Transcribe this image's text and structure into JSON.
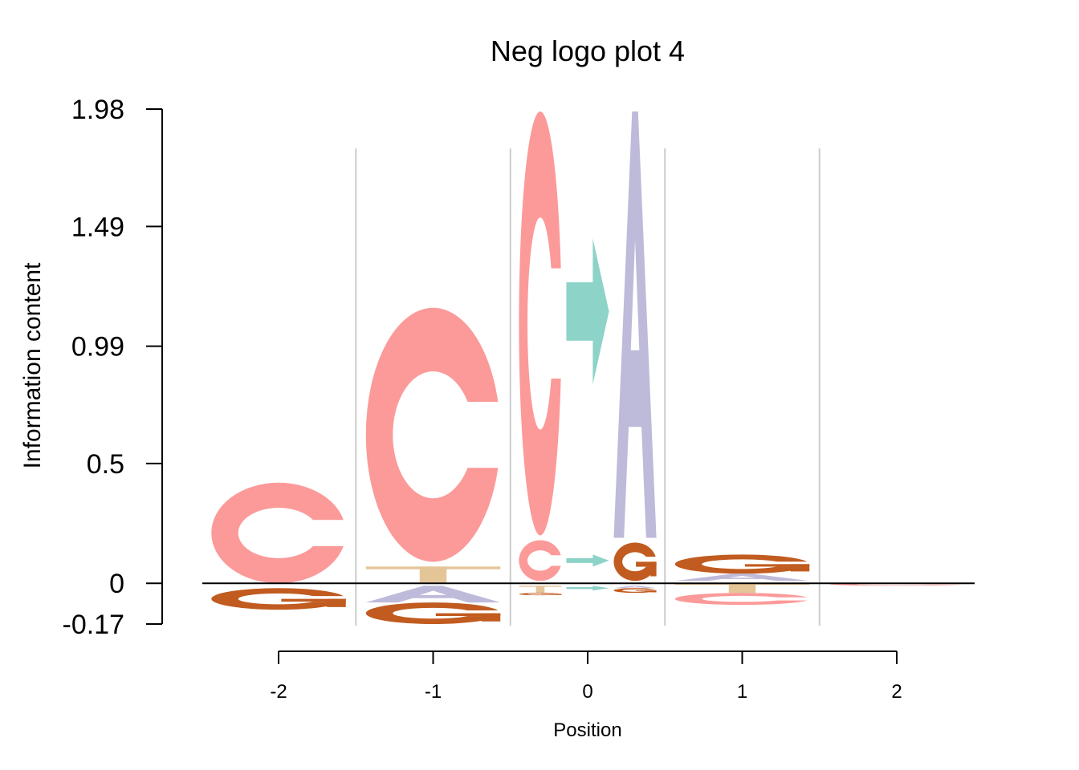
{
  "chart_data": {
    "type": "sequence-logo",
    "title": "Neg logo plot 4",
    "xlabel": "Position",
    "ylabel": "Information content",
    "y_ticks": [
      -0.17,
      0,
      0.5,
      0.99,
      1.49,
      1.98
    ],
    "y_tick_labels": [
      "-0.17",
      "0",
      "0.5",
      "0.99",
      "1.49",
      "1.98"
    ],
    "ylim": [
      -0.17,
      1.98
    ],
    "x_ticks": [
      -2,
      -1,
      0,
      1,
      2
    ],
    "x_tick_labels": [
      "-2",
      "-1",
      "0",
      "1",
      "2"
    ],
    "colors": {
      "A": "#bebada",
      "C": "#fb9a99",
      "G": "#c15b1f",
      "T": "#e4c597",
      "M": "#8dd3c7",
      "axis": "#000000",
      "divider": "#cccccc"
    },
    "positions": [
      {
        "position": -2,
        "columns": [
          {
            "letters": [
              {
                "letter": "C",
                "y0": 0.0,
                "y1": 0.42
              },
              {
                "letter": "G",
                "y0": -0.11,
                "y1": -0.02
              }
            ]
          }
        ]
      },
      {
        "position": -1,
        "columns": [
          {
            "letters": [
              {
                "letter": "T",
                "y0": 0.0,
                "y1": 0.07
              },
              {
                "letter": "C",
                "y0": 0.09,
                "y1": 1.15
              },
              {
                "letter": "A",
                "y0": -0.08,
                "y1": -0.01
              },
              {
                "letter": "G",
                "y0": -0.17,
                "y1": -0.08
              }
            ]
          }
        ]
      },
      {
        "position": 0,
        "columns": [
          {
            "letters": [
              {
                "letter": "C",
                "y0": 0.01,
                "y1": 0.18
              },
              {
                "letter": "C",
                "y0": 0.2,
                "y1": 1.97
              },
              {
                "letter": "T",
                "y0": -0.04,
                "y1": -0.01
              },
              {
                "letter": "G",
                "y0": -0.05,
                "y1": -0.04
              }
            ]
          },
          {
            "letters": [
              {
                "letter": "M",
                "y0": 0.07,
                "y1": 0.12
              },
              {
                "letter": "M",
                "y0": 0.83,
                "y1": 1.44
              },
              {
                "letter": "M",
                "y0": -0.03,
                "y1": -0.01
              }
            ]
          },
          {
            "letters": [
              {
                "letter": "G",
                "y0": 0.01,
                "y1": 0.17
              },
              {
                "letter": "A",
                "y0": 0.19,
                "y1": 1.97
              },
              {
                "letter": "A",
                "y0": -0.02,
                "y1": -0.01
              },
              {
                "letter": "G",
                "y0": -0.04,
                "y1": -0.02
              }
            ]
          }
        ]
      },
      {
        "position": 1,
        "columns": [
          {
            "letters": [
              {
                "letter": "G",
                "y0": 0.04,
                "y1": 0.12
              },
              {
                "letter": "A",
                "y0": 0.01,
                "y1": 0.04
              },
              {
                "letter": "T",
                "y0": -0.04,
                "y1": 0.0
              },
              {
                "letter": "C",
                "y0": -0.09,
                "y1": -0.04
              }
            ]
          }
        ]
      },
      {
        "position": 2,
        "columns": [
          {
            "letters": [
              {
                "letter": "C",
                "y0": -0.01,
                "y1": 0.0
              }
            ]
          }
        ]
      }
    ]
  }
}
